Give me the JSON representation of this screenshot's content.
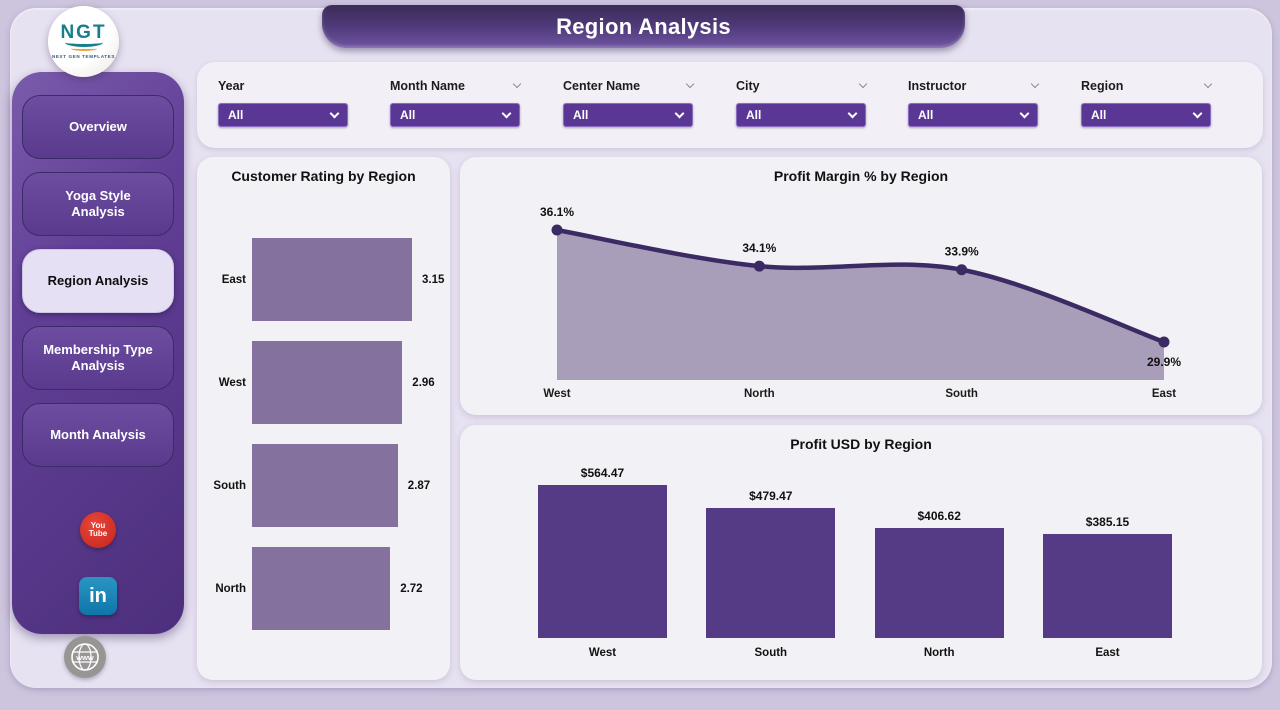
{
  "header": {
    "title": "Region Analysis"
  },
  "logo": {
    "text": "NGT",
    "subtext": "NEXT GEN TEMPLATES"
  },
  "sidebar": {
    "items": [
      {
        "label": "Overview",
        "active": false
      },
      {
        "label": "Yoga Style Analysis",
        "active": false
      },
      {
        "label": "Region Analysis",
        "active": true
      },
      {
        "label": "Membership Type Analysis",
        "active": false
      },
      {
        "label": "Month Analysis",
        "active": false
      }
    ],
    "social": [
      {
        "name": "youtube",
        "line1": "You",
        "line2": "Tube"
      },
      {
        "name": "linkedin",
        "text": "in"
      },
      {
        "name": "website",
        "text": "www"
      }
    ]
  },
  "filters": [
    {
      "label": "Year",
      "value": "All",
      "header_chevron": false
    },
    {
      "label": "Month Name",
      "value": "All",
      "header_chevron": true
    },
    {
      "label": "Center Name",
      "value": "All",
      "header_chevron": true
    },
    {
      "label": "City",
      "value": "All",
      "header_chevron": true
    },
    {
      "label": "Instructor",
      "value": "All",
      "header_chevron": true
    },
    {
      "label": "Region",
      "value": "All",
      "header_chevron": true
    }
  ],
  "chart_data": [
    {
      "type": "bar",
      "orientation": "horizontal",
      "title": "Customer Rating by Region",
      "categories": [
        "East",
        "West",
        "South",
        "North"
      ],
      "values": [
        3.15,
        2.96,
        2.87,
        2.72
      ],
      "value_labels": [
        "3.15",
        "2.96",
        "2.87",
        "2.72"
      ],
      "xlim": [
        0,
        3.15
      ],
      "grid": false,
      "legend": "none"
    },
    {
      "type": "area",
      "title": "Profit Margin % by Region",
      "categories": [
        "West",
        "North",
        "South",
        "East"
      ],
      "values": [
        36.1,
        34.1,
        33.9,
        29.9
      ],
      "value_labels": [
        "36.1%",
        "34.1%",
        "33.9%",
        "29.9%"
      ],
      "grid": false,
      "legend": "none"
    },
    {
      "type": "bar",
      "orientation": "vertical",
      "title": "Profit USD by Region",
      "categories": [
        "West",
        "South",
        "North",
        "East"
      ],
      "values": [
        564.47,
        479.47,
        406.62,
        385.15
      ],
      "value_labels": [
        "$564.47",
        "$479.47",
        "$406.62",
        "$385.15"
      ],
      "ylim": [
        0,
        564.47
      ],
      "grid": false,
      "legend": "none"
    }
  ],
  "colors": {
    "page_bg": "#cdc4de",
    "inner_bg": "#e7e2f1",
    "panel_bg": "#f2f1f6",
    "banner_top": "#3c2b58",
    "banner_bottom": "#6f54a2",
    "sidebar_dark": "#4c2f7c",
    "sidebar_light": "#7a5bab",
    "slicer_purple": "#5a3794",
    "bar_dark": "#553b85",
    "bar_light": "#84719e",
    "area_fill": "#a89eba",
    "line_dark": "#3b2a63",
    "youtube_red": "#c3241a",
    "linkedin_blue": "#0e76a8",
    "active_button_bg": "#e6e0f5"
  }
}
